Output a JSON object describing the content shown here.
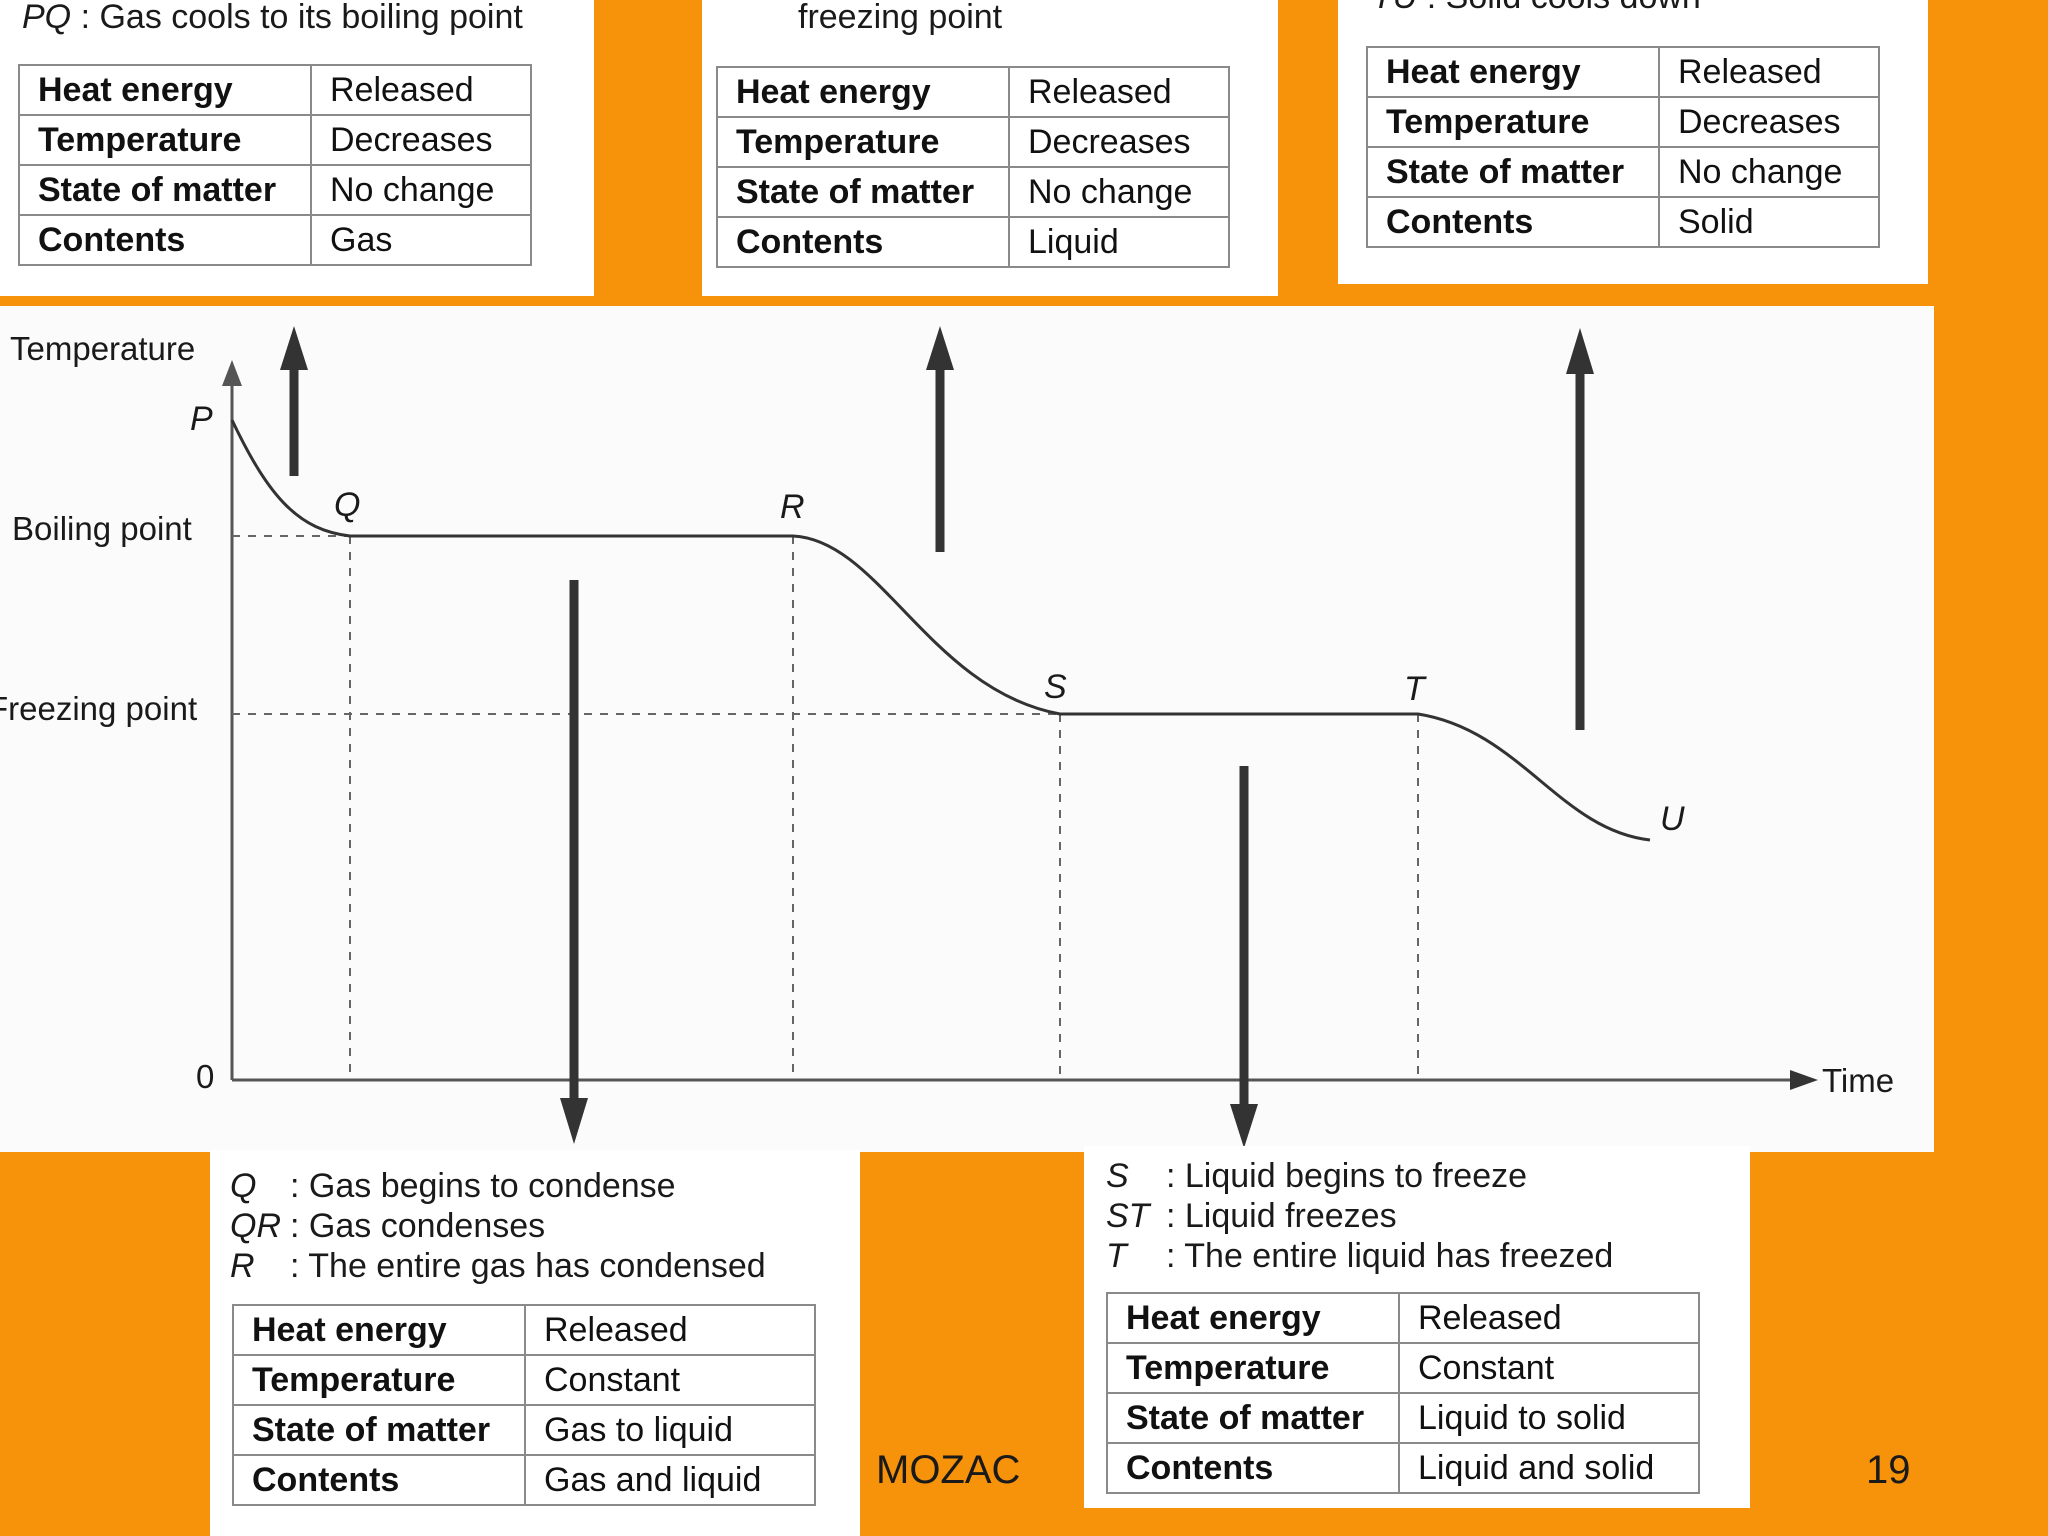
{
  "graph": {
    "y_axis_label": "Temperature",
    "x_axis_label": "Time",
    "origin_label": "0",
    "boiling_label": "Boiling point",
    "freezing_label": "Freezing point",
    "points": [
      "P",
      "Q",
      "R",
      "S",
      "T",
      "U"
    ]
  },
  "top_left": {
    "caption_sym": "PQ",
    "caption_text": " : Gas cools to its boiling point",
    "rows": [
      {
        "key": "Heat energy",
        "value": "Released"
      },
      {
        "key": "Temperature",
        "value": "Decreases"
      },
      {
        "key": "State of matter",
        "value": "No change"
      },
      {
        "key": "Contents",
        "value": "Gas"
      }
    ]
  },
  "top_middle": {
    "caption_text": "freezing point",
    "rows": [
      {
        "key": "Heat energy",
        "value": "Released"
      },
      {
        "key": "Temperature",
        "value": "Decreases"
      },
      {
        "key": "State of matter",
        "value": "No change"
      },
      {
        "key": "Contents",
        "value": "Liquid"
      }
    ]
  },
  "top_right": {
    "caption_sym": "TU",
    "caption_text": " : Solid cools down",
    "rows": [
      {
        "key": "Heat energy",
        "value": "Released"
      },
      {
        "key": "Temperature",
        "value": "Decreases"
      },
      {
        "key": "State of matter",
        "value": "No change"
      },
      {
        "key": "Contents",
        "value": "Solid"
      }
    ]
  },
  "bottom_left": {
    "lines": [
      {
        "sym": "Q",
        "text": ": Gas begins to condense"
      },
      {
        "sym": "QR",
        "text": ": Gas condenses"
      },
      {
        "sym": "R",
        "text": ": The entire gas has condensed"
      }
    ],
    "rows": [
      {
        "key": "Heat energy",
        "value": "Released"
      },
      {
        "key": "Temperature",
        "value": "Constant"
      },
      {
        "key": "State of matter",
        "value": "Gas to liquid"
      },
      {
        "key": "Contents",
        "value": "Gas and liquid"
      }
    ]
  },
  "bottom_right": {
    "lines": [
      {
        "sym": "S",
        "text": ": Liquid begins to freeze"
      },
      {
        "sym": "ST",
        "text": ": Liquid freezes"
      },
      {
        "sym": "T",
        "text": ": The entire liquid has freezed"
      }
    ],
    "rows": [
      {
        "key": "Heat energy",
        "value": "Released"
      },
      {
        "key": "Temperature",
        "value": "Constant"
      },
      {
        "key": "State of matter",
        "value": "Liquid to solid"
      },
      {
        "key": "Contents",
        "value": "Liquid and solid"
      }
    ]
  },
  "footer": {
    "brand": "MOZAC",
    "page_number": "19"
  }
}
